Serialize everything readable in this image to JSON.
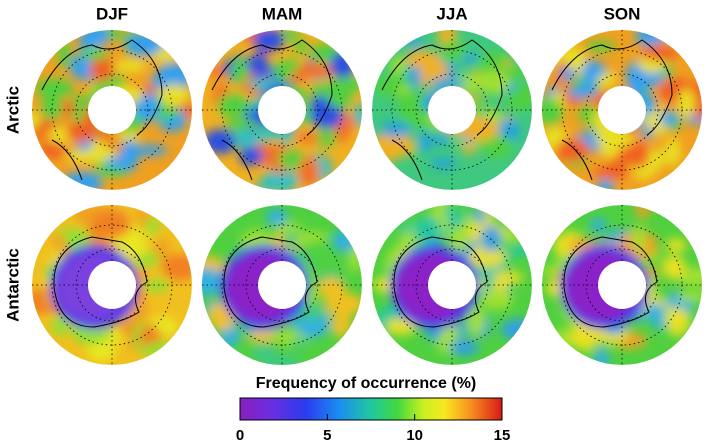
{
  "columns": [
    "DJF",
    "MAM",
    "JJA",
    "SON"
  ],
  "rows": [
    "Arctic",
    "Antarctic"
  ],
  "colorbar": {
    "title": "Frequency of occurrence (%)",
    "lim": [
      0,
      15
    ],
    "ticks": [
      0,
      5,
      10,
      15
    ]
  }
}
